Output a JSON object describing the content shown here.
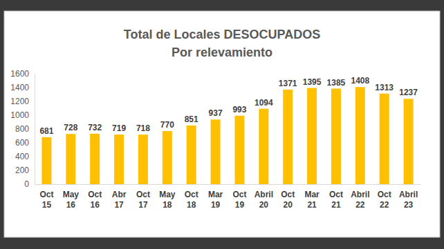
{
  "chart_data": {
    "type": "bar",
    "title": "Total de Locales DESOCUPADOS",
    "subtitle": "Por relevamiento",
    "categories": [
      "Oct 15",
      "May 16",
      "Oct 16",
      "Abr 17",
      "Oct 17",
      "May 18",
      "Oct 18",
      "Mar 19",
      "Oct 19",
      "Abril 20",
      "Oct 20",
      "Mar 21",
      "Oct 21",
      "Abril 22",
      "Oct 22",
      "Abril 23"
    ],
    "values": [
      681,
      728,
      732,
      719,
      718,
      770,
      851,
      937,
      993,
      1094,
      1371,
      1395,
      1385,
      1408,
      1313,
      1237
    ],
    "color": "#ffc000",
    "ylim": [
      0,
      1600
    ],
    "yticks": [
      0,
      200,
      400,
      600,
      800,
      1000,
      1200,
      1400,
      1600
    ],
    "grid": false,
    "data_labels": true
  }
}
